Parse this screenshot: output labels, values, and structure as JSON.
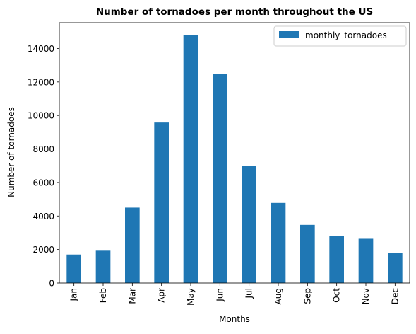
{
  "chart_data": {
    "type": "bar",
    "title": "Number of tornadoes per month throughout the US",
    "xlabel": "Months",
    "ylabel": "Number of tornadoes",
    "categories": [
      "Jan",
      "Feb",
      "Mar",
      "Apr",
      "May",
      "Jun",
      "Jul",
      "Aug",
      "Sep",
      "Oct",
      "Nov",
      "Dec"
    ],
    "series": [
      {
        "name": "monthly_tornadoes",
        "values": [
          1700,
          1930,
          4500,
          9580,
          14800,
          12480,
          6980,
          4780,
          3470,
          2800,
          2640,
          1790
        ],
        "color": "#1f77b4"
      }
    ],
    "ylim": [
      0,
      15540
    ],
    "yticks": [
      0,
      2000,
      4000,
      6000,
      8000,
      10000,
      12000,
      14000
    ],
    "grid": false,
    "legend_position": "top-right"
  }
}
